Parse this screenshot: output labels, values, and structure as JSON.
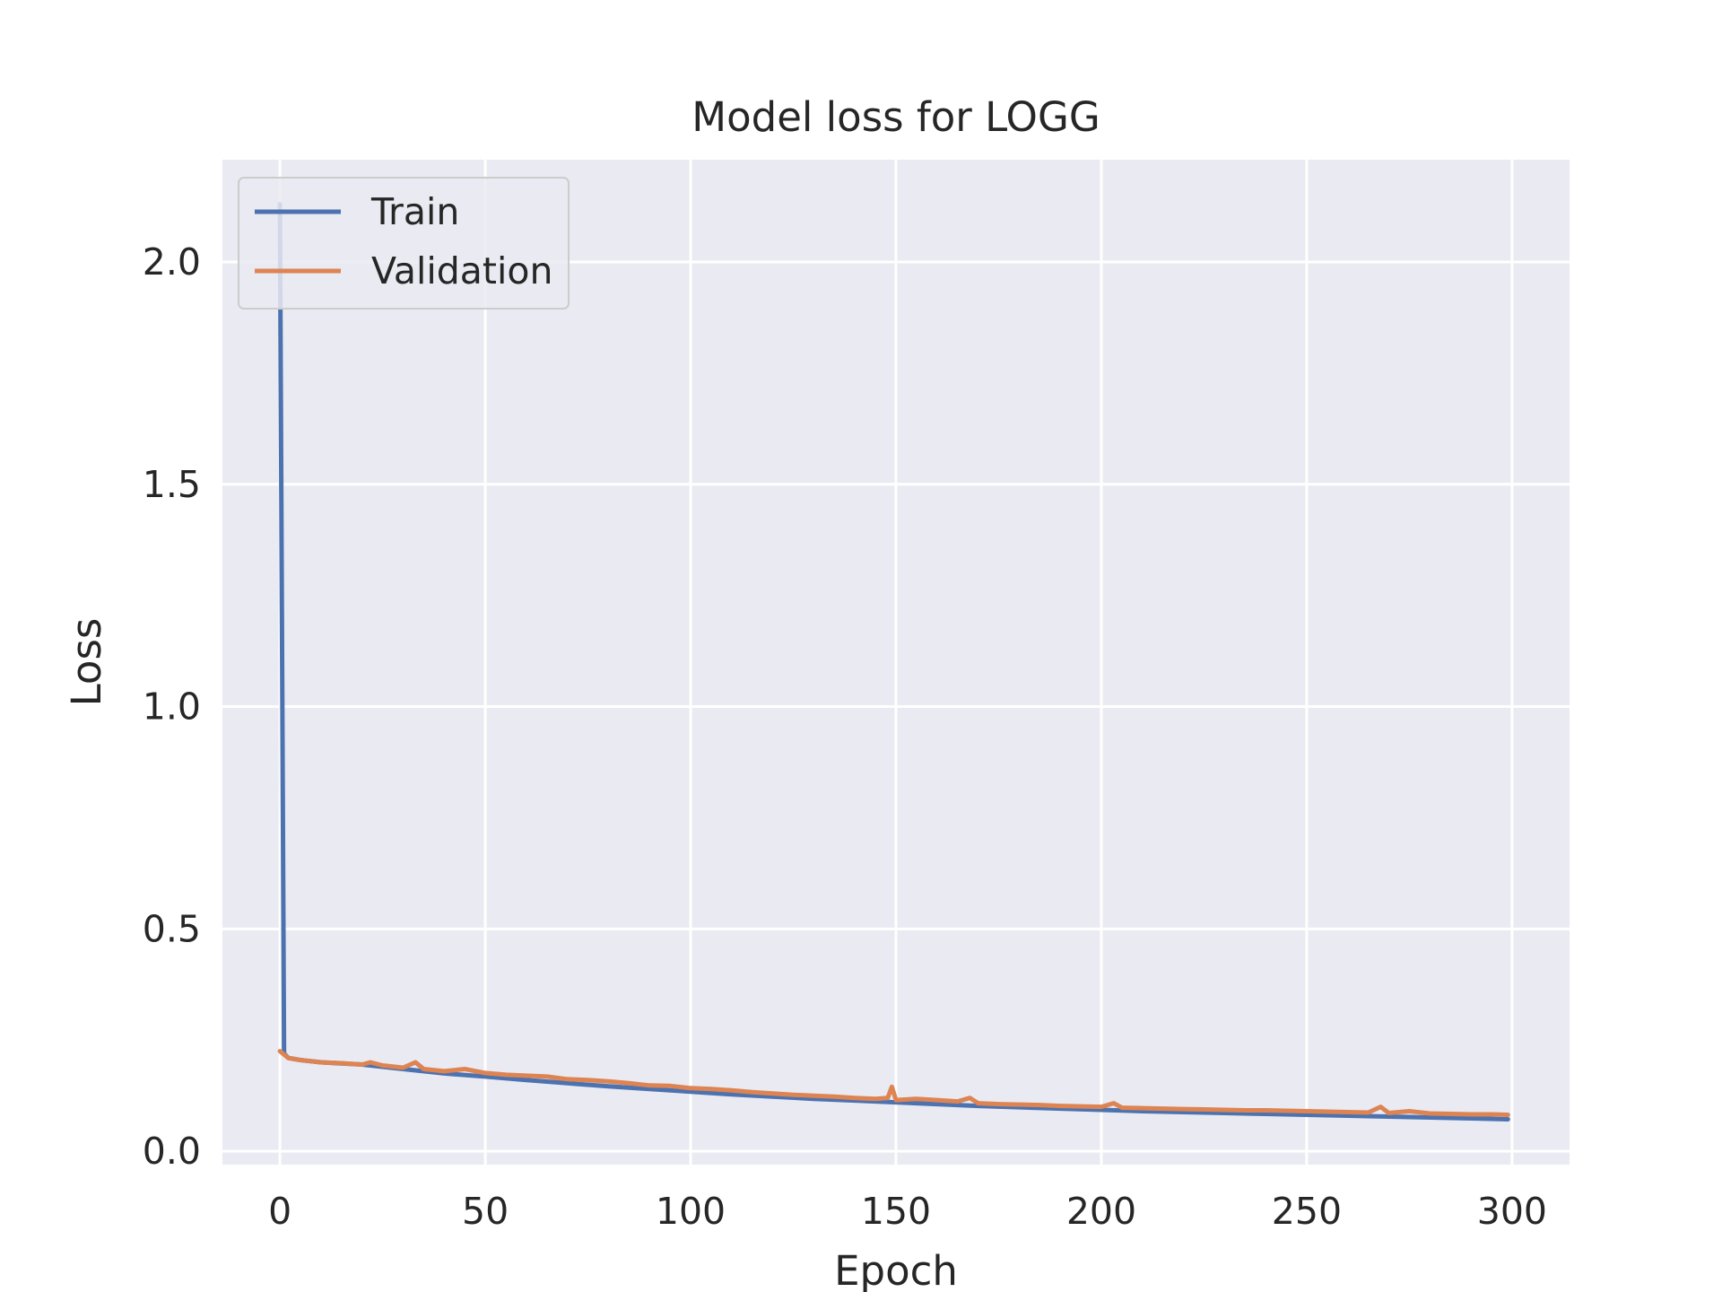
{
  "chart_data": {
    "type": "line",
    "title": "Model loss for LOGG",
    "xlabel": "Epoch",
    "ylabel": "Loss",
    "xlim": [
      -14,
      314
    ],
    "ylim": [
      -0.03,
      2.23
    ],
    "xticks": [
      0,
      50,
      100,
      150,
      200,
      250,
      300
    ],
    "yticks": [
      0.0,
      0.5,
      1.0,
      1.5,
      2.0
    ],
    "xtick_labels": [
      "0",
      "50",
      "100",
      "150",
      "200",
      "250",
      "300"
    ],
    "ytick_labels": [
      "0.0",
      "0.5",
      "1.0",
      "1.5",
      "2.0"
    ],
    "grid": true,
    "legend_position": "top-left",
    "background": "#eaeaf2",
    "series": [
      {
        "name": "Train",
        "color": "#4c72b0",
        "x": [
          0,
          1,
          2,
          5,
          10,
          20,
          30,
          40,
          50,
          60,
          70,
          80,
          90,
          100,
          110,
          120,
          130,
          140,
          150,
          160,
          170,
          180,
          190,
          200,
          210,
          220,
          230,
          240,
          250,
          260,
          270,
          280,
          290,
          299
        ],
        "y": [
          2.13,
          0.22,
          0.21,
          0.205,
          0.2,
          0.195,
          0.185,
          0.175,
          0.168,
          0.16,
          0.153,
          0.146,
          0.14,
          0.134,
          0.128,
          0.123,
          0.118,
          0.114,
          0.11,
          0.106,
          0.102,
          0.099,
          0.096,
          0.093,
          0.09,
          0.088,
          0.086,
          0.084,
          0.082,
          0.08,
          0.078,
          0.076,
          0.074,
          0.072
        ]
      },
      {
        "name": "Validation",
        "color": "#dd8452",
        "x": [
          0,
          2,
          5,
          10,
          15,
          20,
          22,
          25,
          30,
          33,
          35,
          40,
          45,
          50,
          55,
          60,
          65,
          70,
          75,
          80,
          85,
          90,
          95,
          100,
          105,
          110,
          115,
          120,
          125,
          130,
          135,
          140,
          145,
          148,
          149,
          150,
          155,
          160,
          165,
          168,
          170,
          175,
          180,
          185,
          190,
          195,
          200,
          203,
          205,
          210,
          215,
          220,
          225,
          230,
          235,
          240,
          245,
          250,
          255,
          260,
          265,
          268,
          270,
          275,
          280,
          285,
          290,
          295,
          299
        ],
        "y": [
          0.225,
          0.21,
          0.205,
          0.2,
          0.198,
          0.195,
          0.2,
          0.193,
          0.188,
          0.2,
          0.185,
          0.18,
          0.185,
          0.176,
          0.172,
          0.17,
          0.168,
          0.162,
          0.16,
          0.157,
          0.153,
          0.148,
          0.147,
          0.142,
          0.14,
          0.137,
          0.133,
          0.13,
          0.127,
          0.125,
          0.123,
          0.12,
          0.118,
          0.12,
          0.145,
          0.115,
          0.118,
          0.115,
          0.112,
          0.12,
          0.108,
          0.106,
          0.105,
          0.104,
          0.102,
          0.101,
          0.1,
          0.108,
          0.098,
          0.097,
          0.096,
          0.095,
          0.094,
          0.093,
          0.092,
          0.092,
          0.091,
          0.09,
          0.089,
          0.088,
          0.087,
          0.1,
          0.086,
          0.09,
          0.085,
          0.084,
          0.083,
          0.083,
          0.082
        ]
      }
    ]
  }
}
